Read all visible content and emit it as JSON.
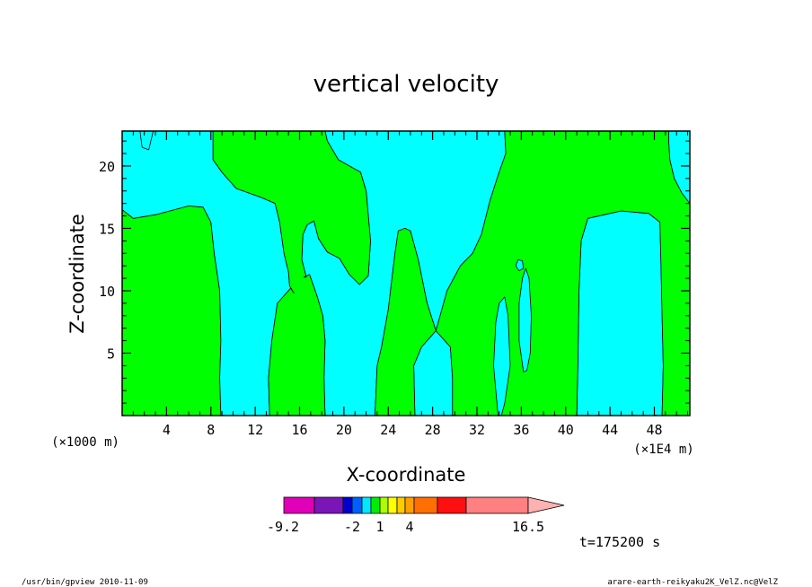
{
  "chart_data": {
    "type": "contour",
    "title": "vertical velocity",
    "xlabel": "X-coordinate",
    "ylabel": "Z-coordinate",
    "x_unit": "(×1E4 m)",
    "y_unit": "(×1000 m)",
    "xlim": [
      0,
      51.2
    ],
    "ylim": [
      0,
      22.8
    ],
    "x_ticks": [
      4,
      8,
      12,
      16,
      20,
      24,
      28,
      32,
      36,
      40,
      44,
      48
    ],
    "y_ticks": [
      5,
      10,
      15,
      20
    ],
    "regions": [
      {
        "name": "left-green",
        "fill": "green",
        "points": [
          [
            0,
            0
          ],
          [
            0,
            16.5
          ],
          [
            1,
            15.8
          ],
          [
            3,
            16.1
          ],
          [
            6,
            16.8
          ],
          [
            7.3,
            16.7
          ],
          [
            8,
            15.5
          ],
          [
            8.3,
            13
          ],
          [
            8.8,
            10
          ],
          [
            8.9,
            6
          ],
          [
            8.8,
            3
          ],
          [
            8.9,
            0
          ]
        ]
      },
      {
        "name": "cyan-band",
        "fill": "cyan",
        "points": [
          [
            8.9,
            0
          ],
          [
            8.8,
            3
          ],
          [
            8.9,
            6
          ],
          [
            8.8,
            10
          ],
          [
            8.3,
            13
          ],
          [
            8,
            15.5
          ],
          [
            7.3,
            16.7
          ],
          [
            6,
            16.8
          ],
          [
            3,
            16.1
          ],
          [
            1,
            15.8
          ],
          [
            0,
            16.5
          ],
          [
            0,
            22.8
          ],
          [
            1.6,
            22.8
          ],
          [
            1.8,
            21.5
          ],
          [
            2.4,
            21.3
          ],
          [
            2.8,
            22.8
          ],
          [
            8.2,
            22.8
          ],
          [
            8.2,
            20.5
          ],
          [
            9,
            19.5
          ],
          [
            10.3,
            18.2
          ],
          [
            12.5,
            17.5
          ],
          [
            13.8,
            17
          ],
          [
            14.2,
            15.5
          ],
          [
            14.6,
            13
          ],
          [
            15,
            11.5
          ],
          [
            15.1,
            10.4
          ],
          [
            15.5,
            9.8
          ],
          [
            16,
            10.5
          ],
          [
            16.4,
            11.1
          ],
          [
            16.9,
            11.3
          ],
          [
            17.6,
            9.5
          ],
          [
            18.1,
            8
          ],
          [
            18.3,
            6
          ],
          [
            18.2,
            3
          ],
          [
            18.3,
            0
          ],
          [
            13.3,
            0
          ],
          [
            13.2,
            3
          ],
          [
            13.5,
            6
          ],
          [
            14,
            9
          ],
          [
            14.5,
            9.5
          ],
          [
            15.2,
            10.2
          ],
          [
            15.6,
            10.9
          ],
          [
            16.1,
            10.6
          ],
          [
            16.6,
            11.1
          ],
          [
            16.2,
            12.5
          ],
          [
            16.3,
            14.5
          ],
          [
            16.7,
            15.3
          ],
          [
            17.3,
            15.6
          ],
          [
            17.7,
            14.2
          ],
          [
            18.5,
            13.1
          ],
          [
            19.6,
            12.6
          ],
          [
            20.5,
            11.3
          ],
          [
            21.4,
            10.5
          ],
          [
            22.2,
            11.2
          ],
          [
            22.4,
            14
          ],
          [
            22,
            18
          ],
          [
            21.5,
            19.5
          ],
          [
            19.5,
            20.5
          ],
          [
            18.5,
            22
          ],
          [
            18.3,
            22.8
          ],
          [
            34.5,
            22.8
          ],
          [
            34.6,
            21
          ],
          [
            34,
            19.5
          ],
          [
            33.2,
            17.3
          ],
          [
            32.4,
            14.5
          ],
          [
            31.6,
            13
          ],
          [
            30.5,
            12
          ],
          [
            29.3,
            10
          ],
          [
            28.3,
            6.8
          ],
          [
            27.5,
            9
          ],
          [
            26.7,
            12.5
          ],
          [
            26,
            14.8
          ],
          [
            25.5,
            15
          ],
          [
            24.9,
            14.8
          ],
          [
            24.6,
            13
          ],
          [
            24.4,
            11.5
          ],
          [
            24,
            8.5
          ],
          [
            23.7,
            7
          ],
          [
            23.4,
            5.5
          ],
          [
            23,
            4
          ],
          [
            22.8,
            0
          ],
          [
            29.8,
            0
          ],
          [
            29.8,
            3
          ],
          [
            29.6,
            5.5
          ],
          [
            28.3,
            6.8
          ],
          [
            27,
            5.5
          ],
          [
            26.3,
            4
          ],
          [
            26.4,
            0
          ],
          [
            48.7,
            0
          ],
          [
            48.8,
            4
          ],
          [
            48.7,
            8
          ],
          [
            48.6,
            12
          ],
          [
            48.5,
            15.5
          ],
          [
            47.5,
            16.2
          ],
          [
            45,
            16.4
          ],
          [
            42,
            15.8
          ],
          [
            41.4,
            14
          ],
          [
            41.2,
            10
          ],
          [
            41.1,
            4
          ],
          [
            41,
            0
          ]
        ]
      },
      {
        "name": "green-mid",
        "fill": "green",
        "points": [
          [
            18.3,
            0
          ],
          [
            18.2,
            3
          ],
          [
            18.3,
            6
          ],
          [
            18.1,
            8
          ],
          [
            17.6,
            9.5
          ],
          [
            16.9,
            11.3
          ],
          [
            16.4,
            11.1
          ],
          [
            16.6,
            11.1
          ],
          [
            16.2,
            12.5
          ],
          [
            16.3,
            14.5
          ],
          [
            16.7,
            15.3
          ],
          [
            17.3,
            15.6
          ],
          [
            17.7,
            14.2
          ],
          [
            18.5,
            13.1
          ],
          [
            19.6,
            12.6
          ],
          [
            20.5,
            11.3
          ],
          [
            21.4,
            10.5
          ],
          [
            22.2,
            11.2
          ],
          [
            22.4,
            14
          ],
          [
            22,
            18
          ],
          [
            21.5,
            19.5
          ],
          [
            19.5,
            20.5
          ],
          [
            18.5,
            22
          ],
          [
            18.3,
            22.8
          ],
          [
            8.2,
            22.8
          ],
          [
            8.2,
            20.5
          ],
          [
            9,
            19.5
          ],
          [
            10.3,
            18.2
          ],
          [
            12.5,
            17.5
          ],
          [
            13.8,
            17
          ],
          [
            14.2,
            15.5
          ],
          [
            14.6,
            13
          ],
          [
            15,
            11.5
          ],
          [
            15.1,
            10.4
          ],
          [
            15.5,
            9.8
          ],
          [
            15.2,
            10.2
          ],
          [
            14.5,
            9.5
          ],
          [
            14,
            9
          ],
          [
            13.5,
            6
          ],
          [
            13.2,
            3
          ],
          [
            13.3,
            0
          ]
        ]
      },
      {
        "name": "green-right",
        "fill": "green",
        "points": [
          [
            22.8,
            0
          ],
          [
            23,
            4
          ],
          [
            23.4,
            5.5
          ],
          [
            23.7,
            7
          ],
          [
            24,
            8.5
          ],
          [
            24.4,
            11.5
          ],
          [
            24.6,
            13
          ],
          [
            24.9,
            14.8
          ],
          [
            25.5,
            15
          ],
          [
            26,
            14.8
          ],
          [
            26.7,
            12.5
          ],
          [
            27.5,
            9
          ],
          [
            28.3,
            6.8
          ],
          [
            27,
            5.5
          ],
          [
            26.3,
            4
          ],
          [
            26.4,
            0
          ]
        ]
      },
      {
        "name": "green-far",
        "fill": "green",
        "points": [
          [
            29.8,
            0
          ],
          [
            29.8,
            3
          ],
          [
            29.6,
            5.5
          ],
          [
            28.3,
            6.8
          ],
          [
            29.3,
            10
          ],
          [
            30.5,
            12
          ],
          [
            31.6,
            13
          ],
          [
            32.4,
            14.5
          ],
          [
            33.2,
            17.3
          ],
          [
            34,
            19.5
          ],
          [
            34.6,
            21
          ],
          [
            34.5,
            22.8
          ],
          [
            51.2,
            22.8
          ],
          [
            51.2,
            17
          ],
          [
            50.5,
            17.8
          ],
          [
            49.8,
            19
          ],
          [
            49.4,
            20.5
          ],
          [
            49.3,
            22
          ],
          [
            49.3,
            22.8
          ],
          [
            51.2,
            22.8
          ],
          [
            51.2,
            0
          ],
          [
            48.7,
            0
          ],
          [
            48.8,
            4
          ],
          [
            48.7,
            8
          ],
          [
            48.6,
            12
          ],
          [
            48.5,
            15.5
          ],
          [
            47.5,
            16.2
          ],
          [
            45,
            16.4
          ],
          [
            42,
            15.8
          ],
          [
            41.4,
            14
          ],
          [
            41.2,
            10
          ],
          [
            41.1,
            4
          ],
          [
            41,
            0
          ]
        ]
      },
      {
        "name": "cyan-bubble-1",
        "fill": "cyan",
        "points": [
          [
            33.9,
            0
          ],
          [
            33.5,
            4
          ],
          [
            33.7,
            7.5
          ],
          [
            34,
            9
          ],
          [
            34.5,
            9.5
          ],
          [
            34.8,
            8
          ],
          [
            35,
            4
          ],
          [
            34.5,
            1
          ],
          [
            34.2,
            0
          ]
        ]
      },
      {
        "name": "cyan-bubble-2",
        "fill": "cyan",
        "points": [
          [
            36.2,
            3.5
          ],
          [
            35.8,
            6
          ],
          [
            35.8,
            9
          ],
          [
            36.1,
            11
          ],
          [
            36.4,
            11.8
          ],
          [
            36.7,
            11
          ],
          [
            36.9,
            8
          ],
          [
            36.8,
            5
          ],
          [
            36.5,
            3.6
          ]
        ]
      },
      {
        "name": "cyan-bubble-3",
        "fill": "cyan",
        "points": [
          [
            35.5,
            12
          ],
          [
            35.7,
            12.5
          ],
          [
            36.1,
            12.4
          ],
          [
            36.2,
            11.8
          ],
          [
            35.8,
            11.6
          ]
        ]
      },
      {
        "name": "cyan-ne",
        "fill": "cyan",
        "points": [
          [
            49.3,
            22.8
          ],
          [
            49.3,
            22
          ],
          [
            49.4,
            20.5
          ],
          [
            49.8,
            19
          ],
          [
            50.5,
            17.8
          ],
          [
            51.2,
            17
          ],
          [
            51.2,
            22.8
          ]
        ]
      }
    ],
    "colorbar": {
      "colors": [
        "#e000b8",
        "#7a16b8",
        "#0000cc",
        "#0060ff",
        "#00e8ff",
        "#00ee00",
        "#aaff00",
        "#ffff00",
        "#ffcc00",
        "#ffa000",
        "#ff6e00",
        "#ff1010",
        "#ff8080",
        "#ffb0b0"
      ],
      "tick_labels": [
        "-9.2",
        "-2",
        "1",
        "4",
        "16.5"
      ]
    },
    "colors": {
      "green": "#00ff00",
      "cyan": "#00ffff",
      "contour": "#000000"
    }
  },
  "time_label": "t=175200 s",
  "footer_left": "/usr/bin/gpview  2010-11-09",
  "footer_right": "arare-earth-reikyaku2K_VelZ.nc@VelZ"
}
